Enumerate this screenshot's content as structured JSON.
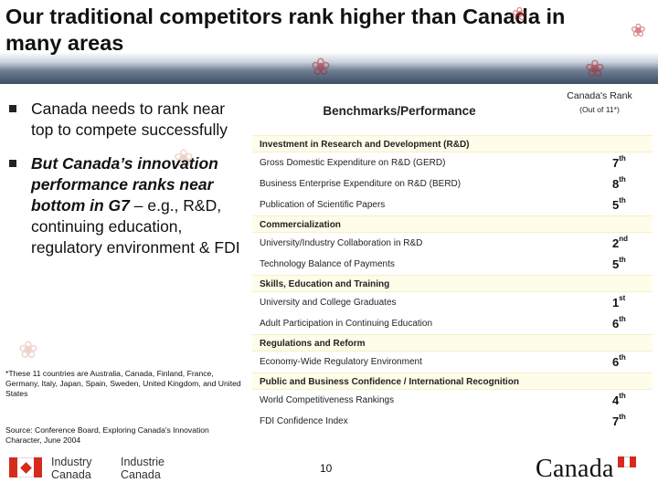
{
  "slide": {
    "title": "Our traditional competitors rank higher than Canada in many areas",
    "bullets": [
      {
        "text": "Canada needs to rank near top to compete successfully"
      },
      {
        "strong": "But Canada’s innovation performance ranks near bottom in G7",
        "rest": " – e.g., R&D, continuing education, regulatory environment & FDI"
      }
    ],
    "footnote": "*These 11 countries are Australia, Canada, Finland, France, Germany, Italy, Japan, Spain, Sweden, United Kingdom, and United States",
    "source": "Source:  Conference Board, Exploring Canada's Innovation Character, June 2004",
    "page_number": "10"
  },
  "government": {
    "industry_en": "Industry",
    "canada_en": "Canada",
    "industry_fr": "Industrie",
    "canada_fr": "Canada",
    "wordmark": "Canada"
  },
  "table": {
    "header_benchmarks": "Benchmarks/Performance",
    "header_rank": "Canada's Rank",
    "header_rank_sub": "(Out of 11*)",
    "sections": [
      {
        "title": "Investment in Research and Development (R&D)",
        "rows": [
          {
            "item": "Gross Domestic Expenditure on R&D (GERD)",
            "rank": "7",
            "suffix": "th"
          },
          {
            "item": "Business Enterprise Expenditure on R&D (BERD)",
            "rank": "8",
            "suffix": "th"
          },
          {
            "item": "Publication of Scientific Papers",
            "rank": "5",
            "suffix": "th"
          }
        ]
      },
      {
        "title": "Commercialization",
        "rows": [
          {
            "item": "University/Industry Collaboration in R&D",
            "rank": "2",
            "suffix": "nd"
          },
          {
            "item": "Technology Balance of Payments",
            "rank": "5",
            "suffix": "th"
          }
        ]
      },
      {
        "title": "Skills, Education and Training",
        "rows": [
          {
            "item": "University and College Graduates",
            "rank": "1",
            "suffix": "st"
          },
          {
            "item": "Adult Participation in Continuing Education",
            "rank": "6",
            "suffix": "th"
          }
        ]
      },
      {
        "title": "Regulations and Reform",
        "rows": [
          {
            "item": "Economy-Wide Regulatory Environment",
            "rank": "6",
            "suffix": "th"
          }
        ]
      },
      {
        "title": "Public and Business Confidence / International Recognition",
        "rows": [
          {
            "item": "World Competitiveness Rankings",
            "rank": "4",
            "suffix": "th"
          },
          {
            "item": "FDI Confidence Index",
            "rank": "7",
            "suffix": "th"
          }
        ]
      }
    ]
  },
  "colors": {
    "maple_red": "#b8222a",
    "section_band": "#fdfdea",
    "flag_red": "#d52b1e",
    "header_shade": "#3e4f66"
  }
}
